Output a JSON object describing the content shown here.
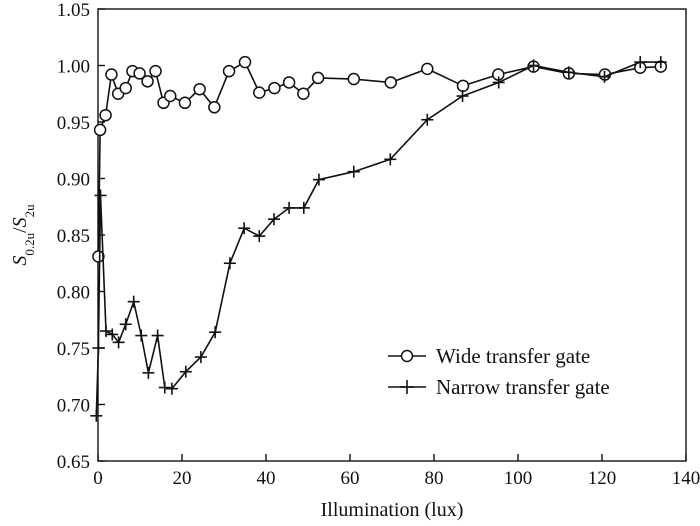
{
  "chart_data": {
    "type": "line",
    "xlabel": "Illumination (lux)",
    "ylabel": {
      "S": "S",
      "num_sub": "0.2u",
      "slash": "/",
      "S2": "S",
      "den_sub": "2u"
    },
    "xlim": [
      0,
      140
    ],
    "ylim": [
      0.65,
      1.05
    ],
    "xticks": [
      "0",
      "20",
      "40",
      "60",
      "80",
      "100",
      "120",
      "140"
    ],
    "yticks": [
      "0.65",
      "0.70",
      "0.75",
      "0.80",
      "0.85",
      "0.90",
      "0.95",
      "1.00",
      "1.05"
    ],
    "legend_position": "bottom-right",
    "series": [
      {
        "name": "Wide transfer gate",
        "marker": "circle",
        "points": [
          [
            0.1,
            0.831
          ],
          [
            0.5,
            0.943
          ],
          [
            1.8,
            0.956
          ],
          [
            3.2,
            0.992
          ],
          [
            4.8,
            0.975
          ],
          [
            6.6,
            0.98
          ],
          [
            8.2,
            0.995
          ],
          [
            9.9,
            0.993
          ],
          [
            11.8,
            0.986
          ],
          [
            13.7,
            0.995
          ],
          [
            15.6,
            0.967
          ],
          [
            17.2,
            0.973
          ],
          [
            20.7,
            0.967
          ],
          [
            24.2,
            0.979
          ],
          [
            27.7,
            0.963
          ],
          [
            31.2,
            0.995
          ],
          [
            35.0,
            1.003
          ],
          [
            38.4,
            0.976
          ],
          [
            42.0,
            0.98
          ],
          [
            45.5,
            0.985
          ],
          [
            48.9,
            0.975
          ],
          [
            52.4,
            0.989
          ],
          [
            60.9,
            0.988
          ],
          [
            69.7,
            0.985
          ],
          [
            78.4,
            0.997
          ],
          [
            86.9,
            0.982
          ],
          [
            95.3,
            0.992
          ],
          [
            103.7,
            0.999
          ],
          [
            112.1,
            0.993
          ],
          [
            120.7,
            0.992
          ],
          [
            129.1,
            0.998
          ],
          [
            134.0,
            0.999
          ]
        ]
      },
      {
        "name": "Narrow transfer gate",
        "marker": "plus",
        "points": [
          [
            -0.4,
            0.69
          ],
          [
            0.1,
            0.75
          ],
          [
            0.6,
            0.885
          ],
          [
            1.9,
            0.765
          ],
          [
            3.4,
            0.762
          ],
          [
            4.9,
            0.755
          ],
          [
            6.6,
            0.771
          ],
          [
            8.5,
            0.791
          ],
          [
            10.3,
            0.761
          ],
          [
            12.0,
            0.728
          ],
          [
            14.2,
            0.761
          ],
          [
            15.9,
            0.715
          ],
          [
            17.6,
            0.714
          ],
          [
            20.9,
            0.729
          ],
          [
            24.5,
            0.742
          ],
          [
            27.9,
            0.764
          ],
          [
            31.4,
            0.825
          ],
          [
            34.8,
            0.856
          ],
          [
            38.4,
            0.849
          ],
          [
            41.9,
            0.864
          ],
          [
            45.5,
            0.874
          ],
          [
            49.0,
            0.874
          ],
          [
            52.6,
            0.899
          ],
          [
            60.9,
            0.906
          ],
          [
            69.6,
            0.917
          ],
          [
            78.4,
            0.952
          ],
          [
            86.8,
            0.973
          ],
          [
            95.4,
            0.985
          ],
          [
            103.7,
            1.0
          ],
          [
            112.1,
            0.994
          ],
          [
            120.6,
            0.99
          ],
          [
            129.1,
            1.003
          ],
          [
            134.0,
            1.003
          ]
        ]
      }
    ]
  }
}
